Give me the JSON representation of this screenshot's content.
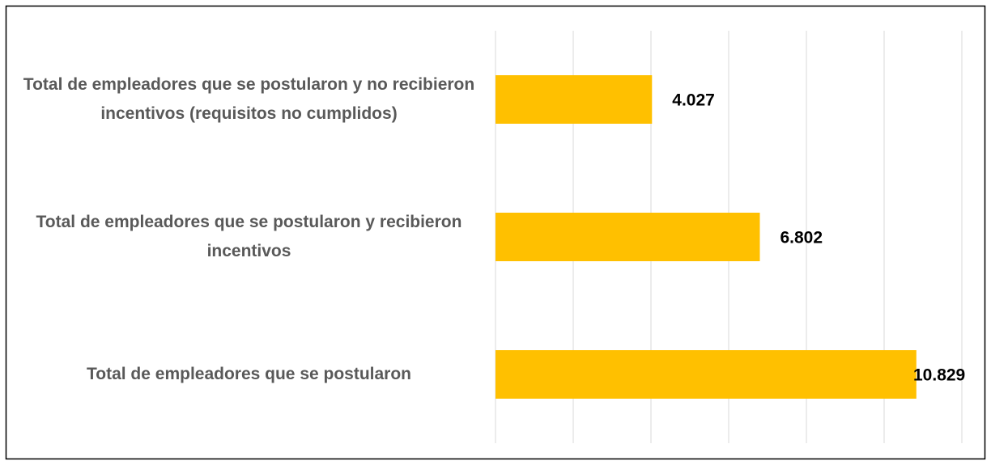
{
  "chart_data": {
    "type": "bar",
    "orientation": "horizontal",
    "categories": [
      "Total de empleadores que se postularon y no recibieron incentivos (requisitos no cumplidos)",
      "Total de empleadores que se postularon y recibieron incentivos",
      "Total de empleadores que se postularon"
    ],
    "values": [
      4027,
      6802,
      10829
    ],
    "value_labels": [
      "4.027",
      "6.802",
      "10.829"
    ],
    "color": "#ffc000",
    "xlim": [
      0,
      12000
    ],
    "xticks": [
      0,
      2000,
      4000,
      6000,
      8000,
      10000,
      12000
    ],
    "grid": true
  }
}
